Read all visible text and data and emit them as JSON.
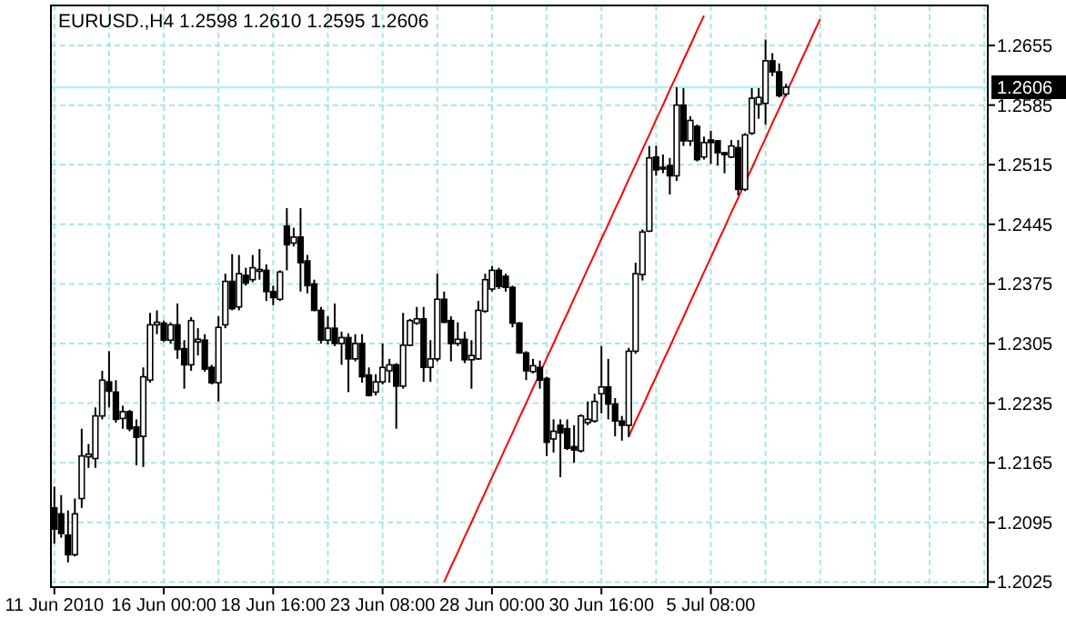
{
  "chart_data": {
    "type": "candlestick",
    "title": "EURUSD.,H4 1.2598 1.2610 1.2595 1.2606",
    "categories": [
      "11 Jun 2010",
      null,
      null,
      null,
      null,
      null,
      null,
      null,
      null,
      null,
      null,
      null,
      null,
      null,
      null,
      null,
      "16 Jun 00:00",
      null,
      null,
      null,
      null,
      null,
      null,
      null,
      null,
      null,
      null,
      null,
      null,
      null,
      null,
      null,
      "18 Jun 16:00",
      null,
      null,
      null,
      null,
      null,
      null,
      null,
      null,
      null,
      null,
      null,
      null,
      null,
      null,
      null,
      "23 Jun 08:00",
      null,
      null,
      null,
      null,
      null,
      null,
      null,
      null,
      null,
      null,
      null,
      null,
      null,
      null,
      null,
      "28 Jun 00:00",
      null,
      null,
      null,
      null,
      null,
      null,
      null,
      null,
      null,
      null,
      null,
      null,
      null,
      null,
      null,
      "30 Jun 16:00",
      null,
      null,
      null,
      null,
      null,
      null,
      null,
      null,
      null,
      null,
      null,
      null,
      null,
      null,
      null,
      "5 Jul 08:00",
      null,
      null,
      null,
      null,
      null,
      null,
      null,
      null,
      null,
      null,
      null,
      null,
      null,
      null,
      null,
      null,
      null,
      null,
      null,
      null,
      null,
      null,
      null,
      null,
      null,
      null,
      null,
      null,
      null,
      null,
      null,
      null,
      null,
      null,
      null,
      null,
      null,
      null,
      null,
      null
    ],
    "ohlc": [
      [
        1.2112,
        1.2137,
        1.207,
        1.2087
      ],
      [
        1.2105,
        1.2127,
        1.2077,
        1.2082
      ],
      [
        1.208,
        1.2109,
        1.2048,
        1.2057
      ],
      [
        1.2057,
        1.2123,
        1.2055,
        1.2105
      ],
      [
        1.2123,
        1.2205,
        1.2112,
        1.2173
      ],
      [
        1.2172,
        1.2187,
        1.2159,
        1.2175
      ],
      [
        1.217,
        1.223,
        1.2159,
        1.222
      ],
      [
        1.222,
        1.2273,
        1.2216,
        1.2262
      ],
      [
        1.226,
        1.2296,
        1.223,
        1.2249
      ],
      [
        1.2248,
        1.2262,
        1.2212,
        1.2216
      ],
      [
        1.2217,
        1.2232,
        1.2205,
        1.2225
      ],
      [
        1.2225,
        1.2227,
        1.2202,
        1.2205
      ],
      [
        1.2207,
        1.2216,
        1.2162,
        1.2195
      ],
      [
        1.2196,
        1.2277,
        1.216,
        1.2266
      ],
      [
        1.2262,
        1.2341,
        1.2259,
        1.2327
      ],
      [
        1.2327,
        1.2344,
        1.2316,
        1.233
      ],
      [
        1.2329,
        1.2332,
        1.2307,
        1.2309
      ],
      [
        1.2309,
        1.233,
        1.2305,
        1.2327
      ],
      [
        1.2327,
        1.2352,
        1.2287,
        1.2298
      ],
      [
        1.2299,
        1.2309,
        1.2252,
        1.228
      ],
      [
        1.228,
        1.2336,
        1.2273,
        1.2332
      ],
      [
        1.2307,
        1.2323,
        1.2291,
        1.231
      ],
      [
        1.2309,
        1.2316,
        1.2272,
        1.2275
      ],
      [
        1.2277,
        1.228,
        1.2257,
        1.2259
      ],
      [
        1.2259,
        1.2337,
        1.2237,
        1.2324
      ],
      [
        1.2327,
        1.2387,
        1.2323,
        1.2378
      ],
      [
        1.2378,
        1.241,
        1.2344,
        1.2346
      ],
      [
        1.2348,
        1.2409,
        1.2344,
        1.2387
      ],
      [
        1.2385,
        1.2394,
        1.2373,
        1.2376
      ],
      [
        1.238,
        1.2409,
        1.2377,
        1.2394
      ],
      [
        1.2391,
        1.2416,
        1.238,
        1.2392
      ],
      [
        1.2391,
        1.2398,
        1.2355,
        1.2366
      ],
      [
        1.2366,
        1.2373,
        1.235,
        1.2359
      ],
      [
        1.2357,
        1.2391,
        1.2355,
        1.2389
      ],
      [
        1.2443,
        1.2464,
        1.2391,
        1.2421
      ],
      [
        1.2423,
        1.2441,
        1.2419,
        1.243
      ],
      [
        1.243,
        1.2464,
        1.2366,
        1.24
      ],
      [
        1.2402,
        1.2409,
        1.2364,
        1.2373
      ],
      [
        1.2375,
        1.238,
        1.2343,
        1.2344
      ],
      [
        1.2344,
        1.2348,
        1.2305,
        1.2309
      ],
      [
        1.2309,
        1.2337,
        1.2304,
        1.2323
      ],
      [
        1.2323,
        1.2352,
        1.2302,
        1.2305
      ],
      [
        1.2305,
        1.2319,
        1.228,
        1.2312
      ],
      [
        1.2312,
        1.2317,
        1.2248,
        1.2287
      ],
      [
        1.2287,
        1.2316,
        1.2284,
        1.2305
      ],
      [
        1.2305,
        1.2316,
        1.2259,
        1.2266
      ],
      [
        1.2268,
        1.2277,
        1.2243,
        1.2244
      ],
      [
        1.2248,
        1.2269,
        1.2244,
        1.226
      ],
      [
        1.226,
        1.2305,
        1.2257,
        1.2277
      ],
      [
        1.2273,
        1.2287,
        1.2259,
        1.228
      ],
      [
        1.228,
        1.2282,
        1.2205,
        1.2255
      ],
      [
        1.2255,
        1.2341,
        1.2252,
        1.2303
      ],
      [
        1.2303,
        1.2334,
        1.2302,
        1.2332
      ],
      [
        1.2329,
        1.2348,
        1.2327,
        1.2334
      ],
      [
        1.2334,
        1.2348,
        1.226,
        1.2277
      ],
      [
        1.2277,
        1.2309,
        1.226,
        1.2287
      ],
      [
        1.2287,
        1.2387,
        1.2284,
        1.2357
      ],
      [
        1.2357,
        1.2366,
        1.2329,
        1.233
      ],
      [
        1.2332,
        1.2337,
        1.2284,
        1.2305
      ],
      [
        1.2305,
        1.233,
        1.2302,
        1.231
      ],
      [
        1.231,
        1.2319,
        1.2282,
        1.2286
      ],
      [
        1.2286,
        1.2309,
        1.2252,
        1.2291
      ],
      [
        1.2287,
        1.2355,
        1.2286,
        1.2344
      ],
      [
        1.2343,
        1.2387,
        1.2341,
        1.238
      ],
      [
        1.2369,
        1.2396,
        1.2366,
        1.2391
      ],
      [
        1.2391,
        1.2394,
        1.2369,
        1.2372
      ],
      [
        1.2384,
        1.2387,
        1.2366,
        1.2371
      ],
      [
        1.2371,
        1.2373,
        1.2324,
        1.2329
      ],
      [
        1.2329,
        1.233,
        1.2293,
        1.2294
      ],
      [
        1.2294,
        1.2296,
        1.2262,
        1.2273
      ],
      [
        1.2272,
        1.2287,
        1.227,
        1.2279
      ],
      [
        1.2277,
        1.2285,
        1.2252,
        1.2262
      ],
      [
        1.2264,
        1.2266,
        1.2173,
        1.2189
      ],
      [
        1.2193,
        1.2216,
        1.2177,
        1.2202
      ],
      [
        1.2209,
        1.2216,
        1.2148,
        1.22
      ],
      [
        1.2205,
        1.2216,
        1.218,
        1.2182
      ],
      [
        1.2184,
        1.2209,
        1.2165,
        1.218
      ],
      [
        1.2179,
        1.2222,
        1.2177,
        1.222
      ],
      [
        1.2212,
        1.2237,
        1.2209,
        1.2216
      ],
      [
        1.2214,
        1.2246,
        1.2212,
        1.2237
      ],
      [
        1.2246,
        1.2302,
        1.2223,
        1.2254
      ],
      [
        1.2254,
        1.2287,
        1.2216,
        1.2234
      ],
      [
        1.2234,
        1.2241,
        1.2196,
        1.2214
      ],
      [
        1.2214,
        1.222,
        1.2191,
        1.2209
      ],
      [
        1.2209,
        1.23,
        1.2195,
        1.2296
      ],
      [
        1.2296,
        1.24,
        1.2293,
        1.2387
      ],
      [
        1.2386,
        1.2439,
        1.2379,
        1.2436
      ],
      [
        1.2437,
        1.2537,
        1.2436,
        1.2523
      ],
      [
        1.2524,
        1.2537,
        1.2502,
        1.2509
      ],
      [
        1.2512,
        1.2527,
        1.2505,
        1.2511
      ],
      [
        1.2514,
        1.2523,
        1.248,
        1.2502
      ],
      [
        1.2502,
        1.2606,
        1.2496,
        1.2585
      ],
      [
        1.2585,
        1.2605,
        1.2537,
        1.2543
      ],
      [
        1.2543,
        1.2572,
        1.2537,
        1.2567
      ],
      [
        1.256,
        1.2562,
        1.2519,
        1.2521
      ],
      [
        1.2524,
        1.2548,
        1.2521,
        1.2541
      ],
      [
        1.2544,
        1.2555,
        1.2516,
        1.2541
      ],
      [
        1.2543,
        1.2544,
        1.2514,
        1.2529
      ],
      [
        1.2529,
        1.253,
        1.2505,
        1.2528
      ],
      [
        1.2524,
        1.2544,
        1.2523,
        1.2537
      ],
      [
        1.2535,
        1.2544,
        1.2479,
        1.2486
      ],
      [
        1.2486,
        1.2552,
        1.2484,
        1.255
      ],
      [
        1.2552,
        1.2605,
        1.255,
        1.2593
      ],
      [
        1.2586,
        1.2605,
        1.2569,
        1.2594
      ],
      [
        1.2587,
        1.2662,
        1.2562,
        1.2637
      ],
      [
        1.2637,
        1.2646,
        1.2619,
        1.2624
      ],
      [
        1.2624,
        1.2634,
        1.2594,
        1.2596
      ],
      [
        1.2598,
        1.261,
        1.2595,
        1.2606
      ],
      null,
      null,
      null,
      null,
      null,
      null,
      null,
      null,
      null,
      null,
      null,
      null,
      null,
      null,
      null,
      null,
      null,
      null,
      null,
      null,
      null,
      null,
      null,
      null,
      null,
      null,
      null,
      null,
      null
    ],
    "series": [
      {
        "type": "line",
        "color": "#ff0000",
        "values": [
          null,
          null,
          null,
          null,
          null,
          null,
          null,
          null,
          null,
          null,
          null,
          null,
          null,
          null,
          null,
          null,
          null,
          null,
          null,
          null,
          null,
          null,
          null,
          null,
          null,
          null,
          null,
          null,
          null,
          null,
          null,
          null,
          null,
          null,
          null,
          null,
          null,
          null,
          null,
          null,
          null,
          null,
          null,
          null,
          null,
          null,
          null,
          null,
          null,
          null,
          null,
          null,
          null,
          null,
          null,
          null,
          null,
          1.2025,
          1.2043,
          1.206,
          1.2078,
          1.2095,
          1.2113,
          1.213,
          1.2148,
          1.2165,
          1.2183,
          1.22,
          1.2218,
          1.2235,
          1.2253,
          1.227,
          1.2288,
          1.2305,
          1.2323,
          1.234,
          1.2358,
          1.2375,
          1.2393,
          1.241,
          1.2428,
          1.2445,
          1.2463,
          1.248,
          1.2498,
          1.2515,
          1.2533,
          1.255,
          1.2568,
          1.2585,
          1.2603,
          1.262,
          1.2638,
          1.2655,
          1.2673,
          1.269,
          null,
          null,
          null,
          null,
          null,
          null,
          null,
          null,
          null,
          null,
          null,
          null,
          null,
          null,
          null,
          null,
          null,
          null,
          null,
          null,
          null,
          null,
          null,
          null,
          null,
          null,
          null,
          null,
          null,
          null,
          null,
          null,
          null,
          null,
          null,
          null,
          null,
          null,
          null,
          null,
          null
        ]
      },
      {
        "type": "line",
        "color": "#ff0000",
        "values": [
          null,
          null,
          null,
          null,
          null,
          null,
          null,
          null,
          null,
          null,
          null,
          null,
          null,
          null,
          null,
          null,
          null,
          null,
          null,
          null,
          null,
          null,
          null,
          null,
          null,
          null,
          null,
          null,
          null,
          null,
          null,
          null,
          null,
          null,
          null,
          null,
          null,
          null,
          null,
          null,
          null,
          null,
          null,
          null,
          null,
          null,
          null,
          null,
          null,
          null,
          null,
          null,
          null,
          null,
          null,
          null,
          null,
          null,
          null,
          null,
          null,
          null,
          null,
          null,
          null,
          null,
          null,
          null,
          null,
          null,
          null,
          null,
          null,
          null,
          null,
          null,
          null,
          null,
          null,
          null,
          null,
          null,
          null,
          null,
          1.2196,
          1.2214,
          1.2231,
          1.2249,
          1.2266,
          1.2284,
          1.2301,
          1.2319,
          1.2336,
          1.2354,
          1.2371,
          1.2389,
          1.2406,
          1.2424,
          1.2441,
          1.2459,
          1.2476,
          1.2494,
          1.2511,
          1.2529,
          1.2546,
          1.2564,
          1.2581,
          1.2599,
          1.2616,
          1.2634,
          1.2651,
          1.2669,
          1.2686,
          null,
          null,
          null,
          null,
          null,
          null,
          null,
          null,
          null,
          null,
          null,
          null,
          null,
          null,
          null,
          null,
          null,
          null,
          null,
          null,
          null,
          null,
          null,
          null
        ]
      }
    ],
    "ylim": [
      1.2019,
      1.2702
    ],
    "yticks": [
      1.2025,
      1.2095,
      1.2165,
      1.2235,
      1.2305,
      1.2375,
      1.2445,
      1.2515,
      1.2585,
      1.2655
    ],
    "ref_lines": [
      {
        "axis": "y",
        "value": 1.2606,
        "label": "1.2606",
        "color": "#b4f0f0"
      }
    ],
    "grid": true
  }
}
